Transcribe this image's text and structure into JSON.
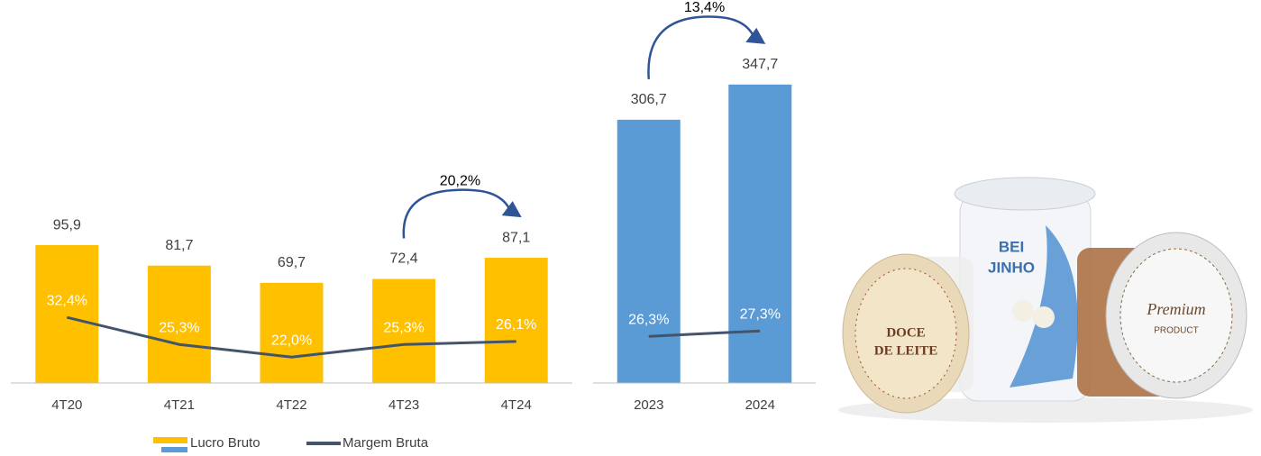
{
  "chart_data": [
    {
      "type": "combo",
      "categories": [
        "4T20",
        "4T21",
        "4T22",
        "4T23",
        "4T24"
      ],
      "bars": {
        "color": "#ffc000",
        "values": [
          95.9,
          81.7,
          69.7,
          72.4,
          87.1
        ],
        "value_labels": [
          "95,9",
          "81,7",
          "69,7",
          "72,4",
          "87,1"
        ]
      },
      "line": {
        "color": "#44546a",
        "values": [
          32.4,
          25.3,
          22.0,
          25.3,
          26.1
        ],
        "value_labels": [
          "32,4%",
          "25,3%",
          "22,0%",
          "25,3%",
          "26,1%"
        ]
      },
      "ylim": [
        0,
        200
      ],
      "y2lim": [
        10,
        40
      ],
      "annotation": "20,2%"
    },
    {
      "type": "combo",
      "categories": [
        "2023",
        "2024"
      ],
      "bars": {
        "color": "#5b9bd5",
        "values": [
          306.7,
          347.7
        ],
        "value_labels": [
          "306,7",
          "347,7"
        ]
      },
      "line": {
        "color": "#44546a",
        "values": [
          26.3,
          27.3
        ],
        "value_labels": [
          "26,3%",
          "27,3%"
        ]
      },
      "ylim": [
        0,
        400
      ],
      "y2lim": [
        20,
        40
      ],
      "annotation": "13,4%"
    }
  ],
  "legend": [
    {
      "name": "Lucro Bruto",
      "colors": [
        "#ffc000",
        "#5b9bd5"
      ]
    },
    {
      "name": "Margem Bruta",
      "color": "#44546a"
    }
  ],
  "product_image": {
    "texts": [
      "BEI",
      "JINHO",
      "DOCE",
      "DE LEITE",
      "Premium",
      "PRODUCT"
    ]
  }
}
